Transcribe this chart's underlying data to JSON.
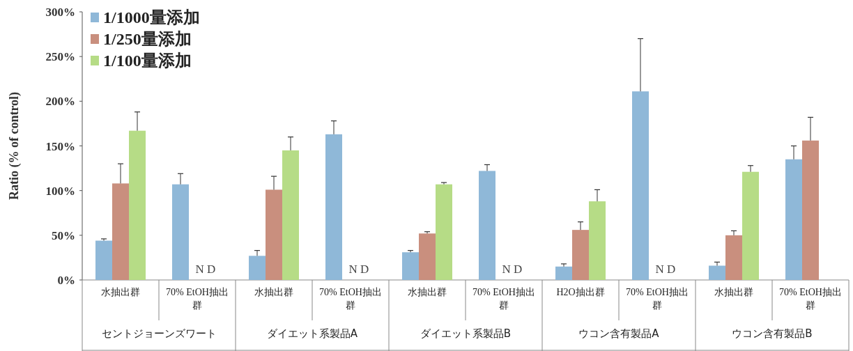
{
  "chart_data": {
    "type": "bar",
    "ylabel": "Ratio (% of control)",
    "categories": [
      "水抽出群",
      "70% EtOH抽出群",
      "水抽出群",
      "70% EtOH抽出群",
      "水抽出群",
      "70% EtOH抽出群",
      "H2O抽出群",
      "70% EtOH抽出群",
      "水抽出群",
      "70% EtOH抽出群"
    ],
    "series": [
      {
        "name": "1/1000量添加",
        "color": "#8fb8d8",
        "values": [
          44,
          107,
          27,
          163,
          31,
          122,
          15,
          211,
          16,
          135
        ],
        "errors": [
          [
            44,
            46
          ],
          [
            107,
            119
          ],
          [
            27,
            33
          ],
          [
            163,
            178
          ],
          [
            31,
            33
          ],
          [
            122,
            129
          ],
          [
            15,
            18
          ],
          [
            211,
            270
          ],
          [
            16,
            20
          ],
          [
            135,
            150
          ]
        ]
      },
      {
        "name": "1/250量添加",
        "color": "#c98f7e",
        "values": [
          108,
          null,
          101,
          null,
          52,
          null,
          56,
          null,
          50,
          156
        ],
        "errors": [
          [
            108,
            130
          ],
          null,
          [
            101,
            116
          ],
          null,
          [
            52,
            54
          ],
          null,
          [
            56,
            65
          ],
          null,
          [
            50,
            55
          ],
          [
            156,
            182
          ]
        ]
      },
      {
        "name": "1/100量添加",
        "color": "#b6dc86",
        "values": [
          167,
          null,
          145,
          null,
          107,
          null,
          88,
          null,
          121,
          null
        ],
        "errors": [
          [
            167,
            188
          ],
          null,
          [
            145,
            160
          ],
          null,
          [
            107,
            109
          ],
          null,
          [
            88,
            101
          ],
          null,
          [
            121,
            128
          ],
          null
        ]
      }
    ],
    "ylim": [
      0,
      300
    ],
    "yticks": [
      {
        "value": 0,
        "label": "0%"
      },
      {
        "value": 50,
        "label": "50%"
      },
      {
        "value": 100,
        "label": "100%"
      },
      {
        "value": 150,
        "label": "150%"
      },
      {
        "value": 200,
        "label": "200%"
      },
      {
        "value": 250,
        "label": "250%"
      },
      {
        "value": 300,
        "label": "300%"
      }
    ],
    "legend": "top left",
    "annotations": [
      "N D",
      "N D",
      "N D",
      "N D",
      "セントジョーンズワート",
      "ダイエット系製品A",
      "ダイエット系製品B",
      "ウコン含有製品A",
      "ウコン含有製品B"
    ]
  }
}
